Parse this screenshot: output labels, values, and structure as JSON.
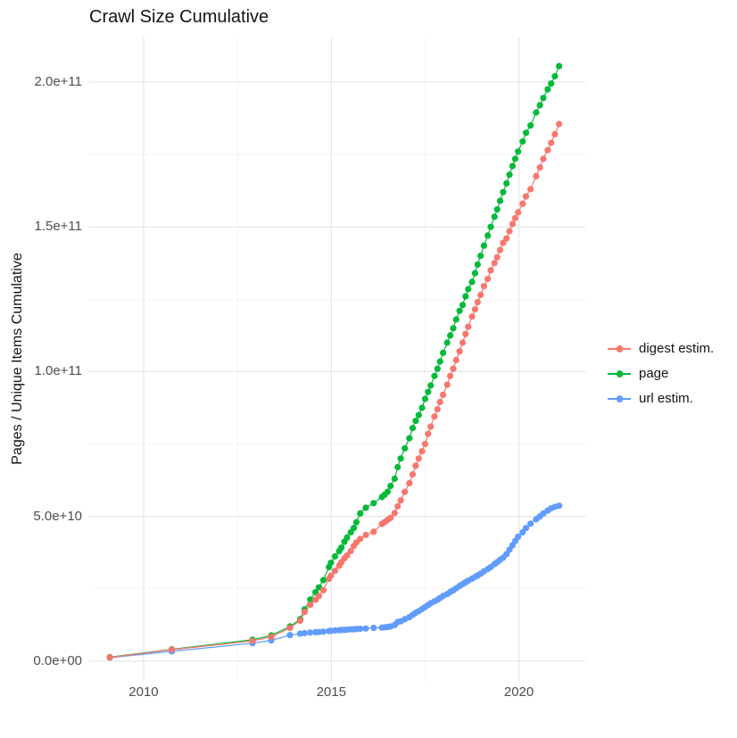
{
  "chart_data": {
    "type": "line",
    "title": "Crawl Size Cumulative",
    "xlabel": "",
    "ylabel": "Pages / Unique Items Cumulative",
    "value_unit": "1e10",
    "x_domain": [
      2008.55,
      2021.77
    ],
    "y_domain": [
      -0.68,
      21.54
    ],
    "x_ticks": [
      {
        "label": "2010",
        "value": 2010
      },
      {
        "label": "2015",
        "value": 2015
      },
      {
        "label": "2020",
        "value": 2020
      }
    ],
    "x_minor": [
      2012.5,
      2017.5
    ],
    "y_ticks": [
      {
        "label": "0.0e+00",
        "value": 0
      },
      {
        "label": "5.0e+10",
        "value": 5
      },
      {
        "label": "1.0e+11",
        "value": 10
      },
      {
        "label": "1.5e+11",
        "value": 15
      },
      {
        "label": "2.0e+11",
        "value": 20
      }
    ],
    "y_minor": [
      2.5,
      7.5,
      12.5,
      17.5
    ],
    "grid": "on",
    "legend_position": "right",
    "x_years": [
      2009.1,
      2010.75,
      2012.9,
      2013.4,
      2013.9,
      2014.17,
      2014.29,
      2014.44,
      2014.58,
      2014.67,
      2014.79,
      2014.94,
      2014.99,
      2015.1,
      2015.21,
      2015.27,
      2015.35,
      2015.42,
      2015.52,
      2015.6,
      2015.67,
      2015.77,
      2015.92,
      2016.13,
      2016.35,
      2016.42,
      2016.5,
      2016.58,
      2016.69,
      2016.77,
      2016.85,
      2016.96,
      2017.08,
      2017.17,
      2017.25,
      2017.33,
      2017.42,
      2017.5,
      2017.58,
      2017.65,
      2017.75,
      2017.83,
      2017.9,
      2017.98,
      2018.09,
      2018.17,
      2018.25,
      2018.33,
      2018.42,
      2018.5,
      2018.58,
      2018.65,
      2018.75,
      2018.83,
      2018.9,
      2018.98,
      2019.07,
      2019.17,
      2019.25,
      2019.35,
      2019.42,
      2019.5,
      2019.58,
      2019.67,
      2019.75,
      2019.83,
      2019.9,
      2019.98,
      2020.1,
      2020.19,
      2020.31,
      2020.46,
      2020.56,
      2020.65,
      2020.77,
      2020.86,
      2020.96,
      2021.07
    ],
    "series": [
      {
        "name": "digest estim.",
        "color": "#F8766D",
        "values": [
          0.13,
          0.4,
          0.7,
          0.84,
          1.15,
          1.4,
          1.7,
          1.95,
          2.12,
          2.25,
          2.45,
          2.85,
          2.95,
          3.12,
          3.3,
          3.42,
          3.55,
          3.65,
          3.8,
          3.98,
          4.1,
          4.22,
          4.36,
          4.47,
          4.74,
          4.8,
          4.88,
          4.95,
          5.12,
          5.35,
          5.55,
          5.85,
          6.15,
          6.45,
          6.75,
          7.0,
          7.25,
          7.5,
          7.85,
          8.1,
          8.45,
          8.7,
          8.95,
          9.2,
          9.55,
          9.85,
          10.1,
          10.4,
          10.7,
          11.0,
          11.3,
          11.55,
          11.9,
          12.15,
          12.4,
          12.65,
          12.95,
          13.2,
          13.5,
          13.75,
          13.95,
          14.2,
          14.45,
          14.6,
          14.85,
          15.1,
          15.3,
          15.5,
          15.8,
          16.05,
          16.3,
          16.75,
          17.05,
          17.35,
          17.65,
          17.9,
          18.2,
          18.55
        ]
      },
      {
        "name": "page",
        "color": "#00BA38",
        "values": [
          0.14,
          0.41,
          0.74,
          0.89,
          1.2,
          1.45,
          1.79,
          2.13,
          2.38,
          2.55,
          2.8,
          3.25,
          3.4,
          3.62,
          3.8,
          3.92,
          4.12,
          4.27,
          4.45,
          4.6,
          4.8,
          5.1,
          5.3,
          5.46,
          5.67,
          5.75,
          5.85,
          6.05,
          6.3,
          6.7,
          7.0,
          7.35,
          7.7,
          8.05,
          8.3,
          8.5,
          8.75,
          9.06,
          9.3,
          9.52,
          9.85,
          10.1,
          10.35,
          10.65,
          11.0,
          11.25,
          11.5,
          11.8,
          12.1,
          12.3,
          12.6,
          12.85,
          13.1,
          13.4,
          13.7,
          14.0,
          14.35,
          14.7,
          15.0,
          15.35,
          15.6,
          15.9,
          16.2,
          16.5,
          16.8,
          17.1,
          17.35,
          17.6,
          17.95,
          18.25,
          18.5,
          18.95,
          19.2,
          19.45,
          19.75,
          19.95,
          20.2,
          20.55
        ]
      },
      {
        "name": "url estim.",
        "color": "#619CFF",
        "values": [
          0.12,
          0.34,
          0.62,
          0.72,
          0.9,
          0.95,
          0.97,
          0.99,
          1.0,
          1.01,
          1.02,
          1.04,
          1.05,
          1.06,
          1.07,
          1.08,
          1.08,
          1.09,
          1.1,
          1.1,
          1.11,
          1.12,
          1.13,
          1.15,
          1.16,
          1.17,
          1.18,
          1.2,
          1.25,
          1.35,
          1.38,
          1.45,
          1.52,
          1.6,
          1.67,
          1.73,
          1.8,
          1.87,
          1.94,
          2.0,
          2.07,
          2.12,
          2.18,
          2.25,
          2.32,
          2.39,
          2.45,
          2.52,
          2.6,
          2.66,
          2.73,
          2.78,
          2.85,
          2.91,
          2.96,
          3.02,
          3.1,
          3.18,
          3.25,
          3.35,
          3.42,
          3.5,
          3.58,
          3.7,
          3.85,
          4.0,
          4.15,
          4.3,
          4.45,
          4.6,
          4.75,
          4.9,
          5.0,
          5.1,
          5.2,
          5.28,
          5.33,
          5.37
        ]
      }
    ],
    "style": {
      "major_grid_color": "#E4E4E4",
      "minor_grid_color": "#F0F0F0",
      "background": "#FFFFFF",
      "point_radius": 3.6,
      "line_width": 1.2
    }
  }
}
